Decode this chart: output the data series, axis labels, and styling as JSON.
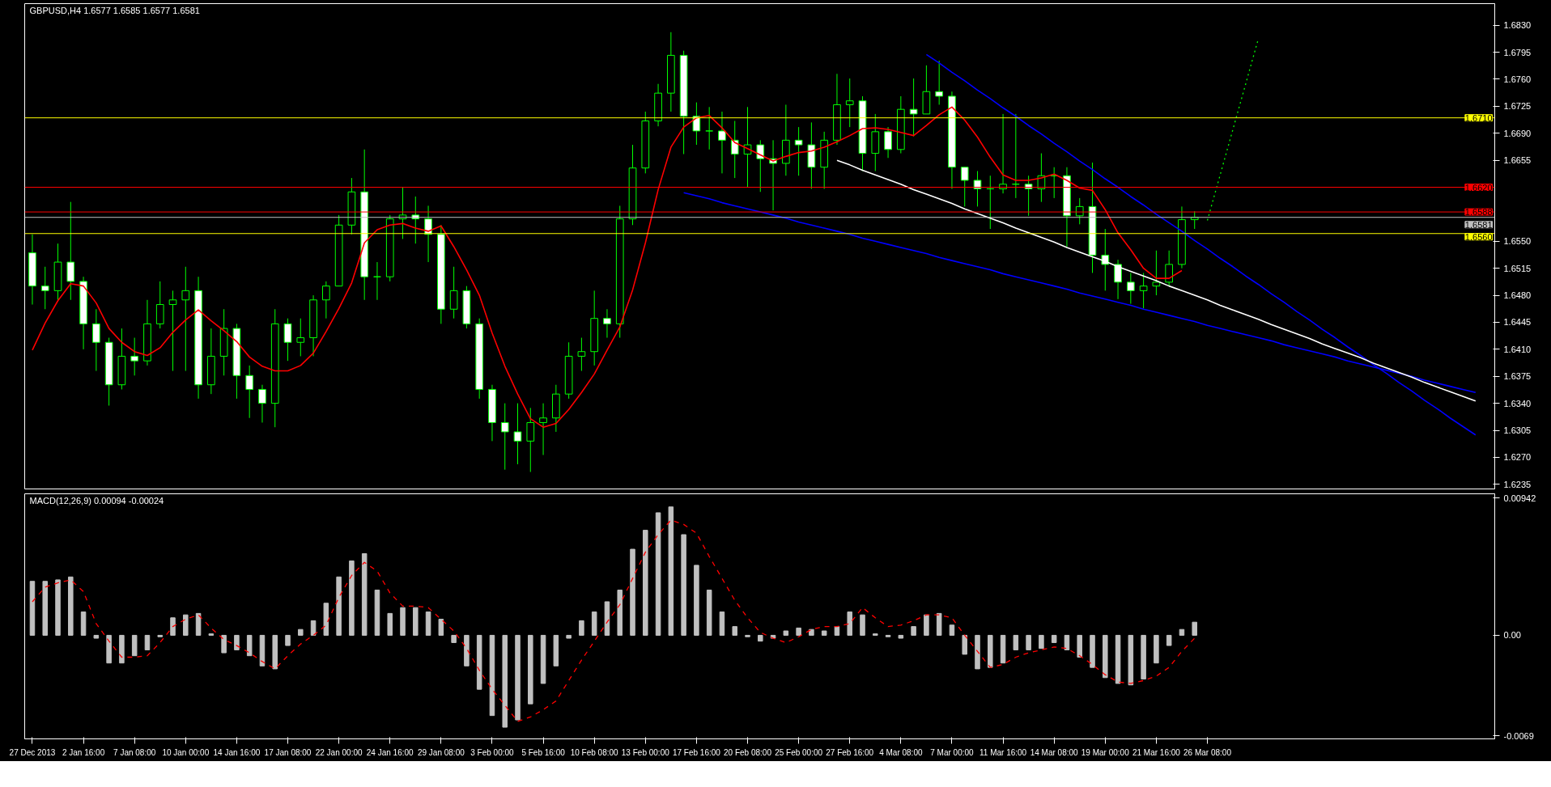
{
  "chart_data": [
    {
      "type": "candlestick",
      "title": "GBPUSD,H4  1.6577 1.6585 1.6577 1.6581",
      "color": "#00ff00",
      "grid": false,
      "tick_labels": "y",
      "ylim": [
        1.6229,
        1.6858
      ],
      "yticks": [
        {
          "value": 1.683,
          "label": "1.6830"
        },
        1.6795,
        {
          "value": 1.676,
          "label": "1.6760"
        },
        1.6725,
        {
          "value": 1.669,
          "label": "1.6690"
        },
        1.6655,
        {
          "value": 1.655,
          "label": "1.6550"
        },
        1.6515,
        {
          "value": 1.648,
          "label": "1.6480"
        },
        1.6445,
        {
          "value": 1.641,
          "label": "1.6410"
        },
        1.6375,
        {
          "value": 1.634,
          "label": "1.6340"
        },
        1.6305,
        {
          "value": 1.627,
          "label": "1.6270"
        },
        1.6235
      ],
      "categories": [
        null,
        null,
        null,
        null,
        null,
        null,
        null,
        null,
        null,
        null,
        null,
        null,
        null,
        null,
        null,
        null,
        null,
        null,
        null,
        null,
        null,
        null,
        null,
        null,
        null,
        null,
        null,
        null,
        null,
        null,
        null,
        null,
        null,
        null,
        null,
        null,
        null,
        null,
        null,
        null,
        null,
        null,
        null,
        null,
        null,
        null,
        null,
        null,
        null,
        null,
        null,
        null,
        null,
        null,
        null,
        null,
        null,
        null,
        null,
        null,
        null,
        null,
        null,
        null,
        null,
        null,
        null,
        null,
        null,
        null,
        null,
        null,
        null,
        null,
        null,
        null,
        null,
        null,
        null,
        null,
        null,
        null,
        null,
        null,
        null,
        null,
        null,
        null,
        null,
        null,
        null,
        null,
        null,
        null,
        null,
        null,
        null,
        null,
        null,
        null,
        null,
        null,
        null,
        null,
        null,
        null,
        null,
        null,
        null,
        null,
        null,
        null,
        null,
        null,
        null
      ],
      "ohlc": [
        [
          1.6535,
          1.6559,
          1.6468,
          1.6492
        ],
        [
          1.6492,
          1.6517,
          1.6462,
          1.6486
        ],
        [
          1.6486,
          1.6547,
          1.6474,
          1.6523
        ],
        [
          1.6523,
          1.6601,
          1.6474,
          1.6498
        ],
        [
          1.6498,
          1.6504,
          1.641,
          1.6443
        ],
        [
          1.6443,
          1.6462,
          1.6382,
          1.6419
        ],
        [
          1.6419,
          1.6425,
          1.6337,
          1.6364
        ],
        [
          1.6364,
          1.6437,
          1.6358,
          1.6401
        ],
        [
          1.6401,
          1.6425,
          1.6376,
          1.6395
        ],
        [
          1.6395,
          1.6474,
          1.6389,
          1.6443
        ],
        [
          1.6443,
          1.6498,
          1.6437,
          1.6468
        ],
        [
          1.6468,
          1.6486,
          1.6382,
          1.6474
        ],
        [
          1.6474,
          1.6517,
          1.6382,
          1.6486
        ],
        [
          1.6486,
          1.6504,
          1.6346,
          1.6364
        ],
        [
          1.6364,
          1.6437,
          1.6352,
          1.6401
        ],
        [
          1.6401,
          1.6462,
          1.6376,
          1.6437
        ],
        [
          1.6437,
          1.6443,
          1.6346,
          1.6376
        ],
        [
          1.6376,
          1.6389,
          1.6321,
          1.6358
        ],
        [
          1.6358,
          1.6364,
          1.6315,
          1.634
        ],
        [
          1.634,
          1.6462,
          1.6309,
          1.6443
        ],
        [
          1.6443,
          1.645,
          1.6395,
          1.6419
        ],
        [
          1.6419,
          1.645,
          1.6401,
          1.6425
        ],
        [
          1.6425,
          1.648,
          1.6401,
          1.6474
        ],
        [
          1.6474,
          1.6498,
          1.645,
          1.6492
        ],
        [
          1.6492,
          1.6584,
          1.6492,
          1.6571
        ],
        [
          1.6571,
          1.6632,
          1.6559,
          1.6614
        ],
        [
          1.6614,
          1.6669,
          1.6474,
          1.6504
        ],
        [
          1.6504,
          1.6523,
          1.6474,
          1.6504
        ],
        [
          1.6504,
          1.6584,
          1.6498,
          1.6579
        ],
        [
          1.6579,
          1.662,
          1.6553,
          1.6584
        ],
        [
          1.6584,
          1.6608,
          1.6547,
          1.6579
        ],
        [
          1.6579,
          1.6596,
          1.6523,
          1.6559
        ],
        [
          1.6559,
          1.6571,
          1.6443,
          1.6462
        ],
        [
          1.6462,
          1.6517,
          1.645,
          1.6486
        ],
        [
          1.6486,
          1.6492,
          1.6437,
          1.6443
        ],
        [
          1.6443,
          1.645,
          1.6346,
          1.6358
        ],
        [
          1.6358,
          1.6364,
          1.6291,
          1.6315
        ],
        [
          1.6315,
          1.634,
          1.6254,
          1.6303
        ],
        [
          1.6303,
          1.634,
          1.6261,
          1.6291
        ],
        [
          1.6291,
          1.6334,
          1.6251,
          1.6315
        ],
        [
          1.6315,
          1.634,
          1.6273,
          1.6321
        ],
        [
          1.6321,
          1.6364,
          1.6303,
          1.6352
        ],
        [
          1.6352,
          1.6419,
          1.6346,
          1.6401
        ],
        [
          1.6401,
          1.6425,
          1.6382,
          1.6407
        ],
        [
          1.6407,
          1.6486,
          1.6389,
          1.645
        ],
        [
          1.645,
          1.6462,
          1.6425,
          1.6443
        ],
        [
          1.6443,
          1.6596,
          1.6425,
          1.6579
        ],
        [
          1.6579,
          1.6675,
          1.6571,
          1.6645
        ],
        [
          1.6645,
          1.6718,
          1.6638,
          1.6706
        ],
        [
          1.6706,
          1.6754,
          1.6699,
          1.6742
        ],
        [
          1.6742,
          1.6821,
          1.6718,
          1.6791
        ],
        [
          1.6791,
          1.6797,
          1.6663,
          1.6712
        ],
        [
          1.6712,
          1.673,
          1.6675,
          1.6693
        ],
        [
          1.6693,
          1.6724,
          1.6669,
          1.6693
        ],
        [
          1.6693,
          1.6718,
          1.6638,
          1.6681
        ],
        [
          1.6681,
          1.6706,
          1.6632,
          1.6663
        ],
        [
          1.6663,
          1.6724,
          1.662,
          1.6675
        ],
        [
          1.6675,
          1.6681,
          1.6614,
          1.6657
        ],
        [
          1.6657,
          1.6681,
          1.659,
          1.6651
        ],
        [
          1.6651,
          1.6727,
          1.6635,
          1.6681
        ],
        [
          1.6681,
          1.6698,
          1.6635,
          1.6675
        ],
        [
          1.6675,
          1.6704,
          1.6618,
          1.6646
        ],
        [
          1.6646,
          1.6692,
          1.6618,
          1.6681
        ],
        [
          1.6681,
          1.6767,
          1.6675,
          1.6727
        ],
        [
          1.6727,
          1.6761,
          1.6698,
          1.6732
        ],
        [
          1.6732,
          1.6738,
          1.6641,
          1.6664
        ],
        [
          1.6664,
          1.6715,
          1.6641,
          1.6692
        ],
        [
          1.6692,
          1.6698,
          1.6658,
          1.6669
        ],
        [
          1.6669,
          1.6738,
          1.6664,
          1.6721
        ],
        [
          1.6721,
          1.6761,
          1.6686,
          1.6715
        ],
        [
          1.6715,
          1.6778,
          1.6715,
          1.6744
        ],
        [
          1.6744,
          1.6784,
          1.6727,
          1.6738
        ],
        [
          1.6738,
          1.6744,
          1.6618,
          1.6646
        ],
        [
          1.6646,
          1.6646,
          1.6595,
          1.6629
        ],
        [
          1.6629,
          1.6641,
          1.6595,
          1.6618
        ],
        [
          1.6618,
          1.6635,
          1.6566,
          1.6618
        ],
        [
          1.6618,
          1.6715,
          1.6612,
          1.6624
        ],
        [
          1.6624,
          1.6715,
          1.6606,
          1.6624
        ],
        [
          1.6624,
          1.6635,
          1.6583,
          1.6618
        ],
        [
          1.6618,
          1.6664,
          1.6601,
          1.6635
        ],
        [
          1.6635,
          1.6646,
          1.6606,
          1.6635
        ],
        [
          1.6635,
          1.6646,
          1.6543,
          1.6583
        ],
        [
          1.6583,
          1.6606,
          1.6572,
          1.6595
        ],
        [
          1.6595,
          1.6652,
          1.6509,
          1.6532
        ],
        [
          1.6532,
          1.6566,
          1.6486,
          1.652
        ],
        [
          1.652,
          1.6526,
          1.6475,
          1.6497
        ],
        [
          1.6497,
          1.6509,
          1.6469,
          1.6486
        ],
        [
          1.6486,
          1.6509,
          1.6463,
          1.6492
        ],
        [
          1.6492,
          1.6538,
          1.648,
          1.6497
        ],
        [
          1.6497,
          1.6538,
          1.6492,
          1.652
        ],
        [
          1.652,
          1.6595,
          1.6515,
          1.6578
        ],
        [
          1.6578,
          1.6589,
          1.6566,
          1.6581
        ],
        null,
        null,
        null,
        null,
        null,
        null,
        null,
        null,
        null,
        null,
        null,
        null,
        null,
        null,
        null,
        null,
        null,
        null,
        null,
        null,
        null,
        null,
        null
      ],
      "series": [
        {
          "type": "line",
          "color": "#ff0000",
          "line_style": "solid",
          "values": [
            1.6409,
            1.6444,
            1.6473,
            1.6495,
            1.6492,
            1.647,
            1.6437,
            1.6419,
            1.6407,
            1.6402,
            1.6412,
            1.6432,
            1.6448,
            1.6461,
            1.6447,
            1.6434,
            1.642,
            1.64,
            1.6388,
            1.6382,
            1.6382,
            1.6389,
            1.6405,
            1.6433,
            1.6463,
            1.6496,
            1.6548,
            1.6565,
            1.6571,
            1.6573,
            1.6567,
            1.6563,
            1.657,
            1.6543,
            1.6513,
            1.648,
            1.6431,
            1.6388,
            1.6352,
            1.632,
            1.6309,
            1.6314,
            1.6332,
            1.6354,
            1.6378,
            1.6409,
            1.6439,
            1.6487,
            1.6548,
            1.6617,
            1.6672,
            1.6698,
            1.671,
            1.6713,
            1.6697,
            1.6678,
            1.667,
            1.6662,
            1.6654,
            1.666,
            1.6665,
            1.6667,
            1.6672,
            1.6679,
            1.6687,
            1.6696,
            1.6697,
            1.6695,
            1.6691,
            1.6687,
            1.67,
            1.6714,
            1.6724,
            1.6707,
            1.6685,
            1.6659,
            1.6636,
            1.6629,
            1.6629,
            1.6632,
            1.6637,
            1.6629,
            1.6619,
            1.6616,
            1.6591,
            1.6561,
            1.6539,
            1.6515,
            1.6502,
            1.6502,
            1.6512,
            null,
            null,
            null,
            null,
            null,
            null,
            null,
            null,
            null,
            null,
            null,
            null,
            null,
            null,
            null,
            null,
            null,
            null,
            null,
            null,
            null,
            null,
            null,
            null
          ]
        },
        {
          "type": "line",
          "color": "#0000ff",
          "line_style": "solid",
          "values": [
            null,
            null,
            null,
            null,
            null,
            null,
            null,
            null,
            null,
            null,
            null,
            null,
            null,
            null,
            null,
            null,
            null,
            null,
            null,
            null,
            null,
            null,
            null,
            null,
            null,
            null,
            null,
            null,
            null,
            null,
            null,
            null,
            null,
            null,
            null,
            null,
            null,
            null,
            null,
            null,
            null,
            null,
            null,
            null,
            null,
            null,
            null,
            null,
            null,
            null,
            null,
            null,
            null,
            null,
            null,
            null,
            null,
            null,
            null,
            null,
            null,
            null,
            null,
            null,
            null,
            null,
            null,
            null,
            null,
            null,
            1.6792,
            1.6781,
            1.6769,
            1.6758,
            1.6746,
            1.6735,
            1.6723,
            1.6712,
            1.67,
            1.6689,
            1.6677,
            1.6666,
            1.6654,
            1.6643,
            1.6631,
            1.662,
            1.6608,
            1.6597,
            1.6585,
            1.6574,
            1.6563,
            1.6551,
            1.654,
            1.6528,
            1.6517,
            1.6505,
            1.6494,
            1.6482,
            1.6471,
            1.6459,
            1.6448,
            1.6436,
            1.6425,
            1.6413,
            1.6402,
            1.639,
            1.6379,
            1.6367,
            1.6356,
            1.6344,
            1.6333,
            1.6321,
            1.631,
            1.6299,
            null
          ]
        },
        {
          "type": "line",
          "color": "#0000ff",
          "line_style": "solid",
          "values": [
            null,
            null,
            null,
            null,
            null,
            null,
            null,
            null,
            null,
            null,
            null,
            null,
            null,
            null,
            null,
            null,
            null,
            null,
            null,
            null,
            null,
            null,
            null,
            null,
            null,
            null,
            null,
            null,
            null,
            null,
            null,
            null,
            null,
            null,
            null,
            null,
            null,
            null,
            null,
            null,
            null,
            null,
            null,
            null,
            null,
            null,
            null,
            null,
            null,
            null,
            null,
            1.6613,
            1.6609,
            1.6605,
            1.66,
            1.6596,
            1.6592,
            1.6588,
            1.6584,
            1.658,
            1.6575,
            1.6571,
            1.6567,
            1.6563,
            1.6559,
            1.6554,
            1.655,
            1.6546,
            1.6542,
            1.6538,
            1.6534,
            1.6529,
            1.6525,
            1.6521,
            1.6517,
            1.6513,
            1.6508,
            1.6504,
            1.65,
            1.6496,
            1.6492,
            1.6488,
            1.6483,
            1.6479,
            1.6475,
            1.6471,
            1.6467,
            1.6462,
            1.6458,
            1.6454,
            1.645,
            1.6446,
            1.6441,
            1.6437,
            1.6433,
            1.6429,
            1.6425,
            1.6421,
            1.6416,
            1.6412,
            1.6408,
            1.6404,
            1.64,
            1.6395,
            1.6391,
            1.6387,
            1.6383,
            1.6379,
            1.6375,
            1.637,
            1.6366,
            1.6362,
            1.6358,
            1.6354,
            null
          ]
        },
        {
          "type": "line",
          "color": "#ffffff",
          "line_style": "solid",
          "values": [
            null,
            null,
            null,
            null,
            null,
            null,
            null,
            null,
            null,
            null,
            null,
            null,
            null,
            null,
            null,
            null,
            null,
            null,
            null,
            null,
            null,
            null,
            null,
            null,
            null,
            null,
            null,
            null,
            null,
            null,
            null,
            null,
            null,
            null,
            null,
            null,
            null,
            null,
            null,
            null,
            null,
            null,
            null,
            null,
            null,
            null,
            null,
            null,
            null,
            null,
            null,
            null,
            null,
            null,
            null,
            null,
            null,
            null,
            null,
            null,
            null,
            null,
            null,
            1.6655,
            1.6649,
            1.6642,
            1.6636,
            1.663,
            1.6624,
            1.6617,
            1.6611,
            1.6605,
            1.6599,
            1.6592,
            1.6586,
            1.658,
            1.6574,
            1.6567,
            1.6561,
            1.6555,
            1.6549,
            1.6542,
            1.6536,
            1.653,
            1.6524,
            1.6517,
            1.6511,
            1.6505,
            1.6499,
            1.6492,
            1.6486,
            1.648,
            1.6474,
            1.6467,
            1.6461,
            1.6455,
            1.6449,
            1.6442,
            1.6436,
            1.643,
            1.6424,
            1.6417,
            1.6411,
            1.6405,
            1.6399,
            1.6392,
            1.6386,
            1.638,
            1.6374,
            1.6367,
            1.6361,
            1.6355,
            1.6349,
            1.6343,
            null
          ]
        },
        {
          "type": "line",
          "color": "#00ff00",
          "line_style": "dotted",
          "values": [
            null,
            null,
            null,
            null,
            null,
            null,
            null,
            null,
            null,
            null,
            null,
            null,
            null,
            null,
            null,
            null,
            null,
            null,
            null,
            null,
            null,
            null,
            null,
            null,
            null,
            null,
            null,
            null,
            null,
            null,
            null,
            null,
            null,
            null,
            null,
            null,
            null,
            null,
            null,
            null,
            null,
            null,
            null,
            null,
            null,
            null,
            null,
            null,
            null,
            null,
            null,
            null,
            null,
            null,
            null,
            null,
            null,
            null,
            null,
            null,
            null,
            null,
            null,
            null,
            null,
            null,
            null,
            null,
            null,
            null,
            null,
            null,
            null,
            null,
            null,
            null,
            null,
            null,
            null,
            null,
            null,
            null,
            null,
            null,
            null,
            null,
            null,
            null,
            null,
            null,
            null,
            null,
            1.6577,
            1.6636,
            1.6695,
            1.6754,
            1.6813,
            null,
            null,
            null,
            null,
            null,
            null,
            null,
            null,
            null,
            null,
            null,
            null,
            null,
            null,
            null,
            null,
            null,
            null
          ]
        }
      ],
      "ref_lines": [
        {
          "axis": "y",
          "value": 1.671,
          "label": "1.6710",
          "color": "#ffff00"
        },
        {
          "axis": "y",
          "value": 1.662,
          "label": "1.6620",
          "color": "#ff0000"
        },
        {
          "axis": "y",
          "value": 1.6588,
          "label": "1.6588",
          "color": "#ff0000"
        },
        {
          "axis": "y",
          "value": 1.6581,
          "label": "1.6581",
          "color": "#c0c0c0"
        },
        {
          "axis": "y",
          "value": 1.656,
          "label": "1.6560",
          "color": "#ffff00"
        }
      ]
    },
    {
      "type": "bar",
      "title": "MACD(12,26,9) 0.00094 -0.00024",
      "color": "#c0c0c0",
      "grid": false,
      "ylim": [
        -0.0071,
        0.0097
      ],
      "yticks": [
        0.00942,
        {
          "value": 0,
          "label": "0.00"
        },
        -0.0069
      ],
      "categories": [
        "27 Dec 2013",
        null,
        null,
        null,
        "2 Jan 16:00",
        null,
        null,
        null,
        "7 Jan 08:00",
        null,
        null,
        null,
        "10 Jan 00:00",
        null,
        null,
        null,
        "14 Jan 16:00",
        null,
        null,
        null,
        "17 Jan 08:00",
        null,
        null,
        null,
        "22 Jan 00:00",
        null,
        null,
        null,
        "24 Jan 16:00",
        null,
        null,
        null,
        "29 Jan 08:00",
        null,
        null,
        null,
        "3 Feb 00:00",
        null,
        null,
        null,
        "5 Feb 16:00",
        null,
        null,
        null,
        "10 Feb 08:00",
        null,
        null,
        null,
        "13 Feb 00:00",
        null,
        null,
        null,
        "17 Feb 16:00",
        null,
        null,
        null,
        "20 Feb 08:00",
        null,
        null,
        null,
        "25 Feb 00:00",
        null,
        null,
        null,
        "27 Feb 16:00",
        null,
        null,
        null,
        "4 Mar 08:00",
        null,
        null,
        null,
        "7 Mar 00:00",
        null,
        null,
        null,
        "11 Mar 16:00",
        null,
        null,
        null,
        "14 Mar 08:00",
        null,
        null,
        null,
        "19 Mar 00:00",
        null,
        null,
        null,
        "21 Mar 16:00",
        null,
        null,
        null,
        "26 Mar 08:00",
        null,
        null,
        null,
        null,
        null,
        null,
        null,
        null,
        null,
        null,
        null,
        null,
        null,
        null,
        null,
        null,
        null,
        null,
        null,
        null,
        null,
        null
      ],
      "values": [
        0.0037,
        0.0037,
        0.0038,
        0.004,
        0.0016,
        -0.0002,
        -0.0019,
        -0.0019,
        -0.0014,
        -0.001,
        -0.0001,
        0.0012,
        0.0014,
        0.0015,
        0.0001,
        -0.0012,
        -0.001,
        -0.0014,
        -0.0021,
        -0.0023,
        -0.0007,
        0.0004,
        0.001,
        0.0022,
        0.004,
        0.0051,
        0.0056,
        0.0031,
        0.0015,
        0.0019,
        0.0019,
        0.0016,
        0.0011,
        -0.0005,
        -0.0021,
        -0.0037,
        -0.0055,
        -0.0063,
        -0.0058,
        -0.0047,
        -0.0033,
        -0.0021,
        -0.0002,
        0.001,
        0.0016,
        0.0023,
        0.0031,
        0.0059,
        0.0072,
        0.0084,
        0.0088,
        0.0069,
        0.0048,
        0.0031,
        0.0016,
        0.0006,
        -0.0001,
        -0.0004,
        -0.0002,
        0.0003,
        0.0005,
        0.0004,
        0.0003,
        0.0006,
        0.0016,
        0.0014,
        0.0001,
        -0.0001,
        -0.0002,
        0.0006,
        0.0014,
        0.0015,
        0.0007,
        -0.0013,
        -0.0023,
        -0.0022,
        -0.0019,
        -0.001,
        -0.001,
        -0.0009,
        -0.0005,
        -0.001,
        -0.0015,
        -0.0022,
        -0.0029,
        -0.0033,
        -0.0034,
        -0.003,
        -0.0019,
        -0.0007,
        0.0004,
        0.0009,
        null,
        null,
        null,
        null,
        null,
        null,
        null,
        null,
        null,
        null,
        null,
        null,
        null,
        null,
        null,
        null,
        null,
        null,
        null,
        null,
        null,
        null,
        null
      ],
      "series": [
        {
          "type": "line",
          "color": "#ff0000",
          "line_style": "dashed",
          "values": [
            0.0023,
            0.0033,
            0.0036,
            0.0038,
            0.003,
            0.0008,
            -0.0004,
            -0.0015,
            -0.0015,
            -0.0014,
            -0.0005,
            0.0006,
            0.0011,
            0.0014,
            0.0005,
            -0.0003,
            -0.0007,
            -0.0012,
            -0.0018,
            -0.0023,
            -0.0014,
            -0.0006,
            0.0,
            0.0007,
            0.0026,
            0.0041,
            0.005,
            0.0044,
            0.0029,
            0.002,
            0.002,
            0.0019,
            0.0011,
            0.0003,
            -0.0009,
            -0.0024,
            -0.0037,
            -0.0048,
            -0.0059,
            -0.0056,
            -0.0051,
            -0.0045,
            -0.0031,
            -0.0017,
            -0.0004,
            0.0009,
            0.0021,
            0.0039,
            0.0057,
            0.0069,
            0.0079,
            0.0076,
            0.007,
            0.0054,
            0.0039,
            0.0024,
            0.0012,
            0.0002,
            -0.0002,
            -0.0005,
            -0.0001,
            0.0004,
            0.0006,
            0.0006,
            0.0008,
            0.0019,
            0.0012,
            0.0006,
            0.0007,
            0.001,
            0.0014,
            0.0014,
            0.0012,
            0.0,
            -0.0011,
            -0.0022,
            -0.002,
            -0.0015,
            -0.0012,
            -0.001,
            -0.0008,
            -0.0009,
            -0.0014,
            -0.002,
            -0.0027,
            -0.0032,
            -0.0033,
            -0.0031,
            -0.0028,
            -0.0022,
            -0.0011,
            -0.0002,
            null,
            null,
            null,
            null,
            null,
            null,
            null,
            null,
            null,
            null,
            null,
            null,
            null,
            null,
            null,
            null,
            null,
            null,
            null,
            null,
            null,
            null,
            null
          ]
        }
      ]
    }
  ]
}
